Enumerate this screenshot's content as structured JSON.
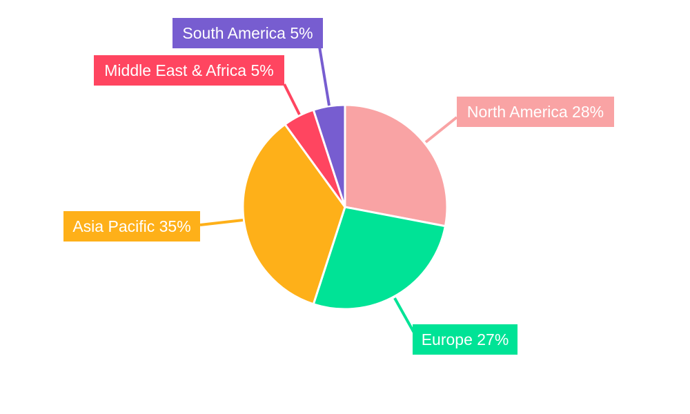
{
  "chart_data": {
    "type": "pie",
    "title": "",
    "start": "top",
    "direction": "clockwise",
    "slices": [
      {
        "name": "North America",
        "value": 28,
        "label": "North America 28%",
        "color": "#F9A3A4"
      },
      {
        "name": "Europe",
        "value": 27,
        "label": "Europe 27%",
        "color": "#00E396"
      },
      {
        "name": "Asia Pacific",
        "value": 35,
        "label": "Asia Pacific 35%",
        "color": "#FEB019"
      },
      {
        "name": "Middle East & Africa",
        "value": 5,
        "label": "Middle East & Africa 5%",
        "color": "#FF4560"
      },
      {
        "name": "South America",
        "value": 5,
        "label": "South America 5%",
        "color": "#775DD0"
      }
    ]
  }
}
